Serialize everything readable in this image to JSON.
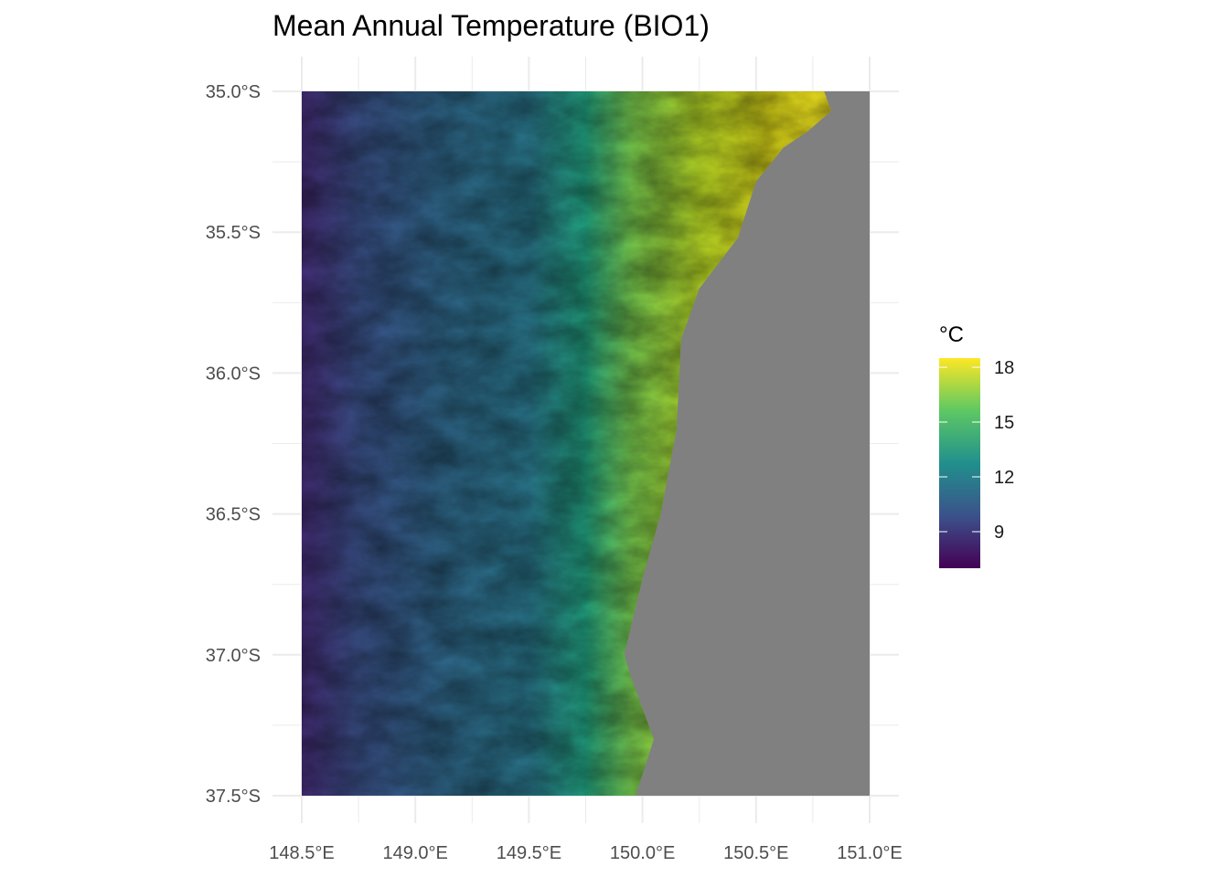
{
  "chart_data": {
    "type": "heatmap",
    "title": "Mean Annual Temperature (BIO1)",
    "xlabel": "",
    "ylabel": "",
    "x_ticks": [
      {
        "value": 148.5,
        "label": "148.5°E"
      },
      {
        "value": 149.0,
        "label": "149.0°E"
      },
      {
        "value": 149.5,
        "label": "149.5°E"
      },
      {
        "value": 150.0,
        "label": "150.0°E"
      },
      {
        "value": 150.5,
        "label": "150.5°E"
      },
      {
        "value": 151.0,
        "label": "151.0°E"
      }
    ],
    "y_ticks": [
      {
        "value": -35.0,
        "label": "35.0°S"
      },
      {
        "value": -35.5,
        "label": "35.5°S"
      },
      {
        "value": -36.0,
        "label": "36.0°S"
      },
      {
        "value": -36.5,
        "label": "36.5°S"
      },
      {
        "value": -37.0,
        "label": "37.0°S"
      },
      {
        "value": -37.5,
        "label": "37.5°S"
      }
    ],
    "xlim": [
      148.5,
      151.0
    ],
    "ylim": [
      -37.5,
      -35.0
    ],
    "grid": true,
    "legend": {
      "title": "°C",
      "placement": "right",
      "palette": "viridis",
      "colors": [
        "#440154",
        "#3b528b",
        "#21908c",
        "#5dc863",
        "#fde725"
      ],
      "range": [
        7,
        18.5
      ],
      "ticks": [
        {
          "value": 9,
          "label": "9"
        },
        {
          "value": 12,
          "label": "12"
        },
        {
          "value": 15,
          "label": "15"
        },
        {
          "value": 18,
          "label": "18"
        }
      ]
    },
    "na_color": "#808080",
    "coastline": [
      [
        150.8,
        -35.0
      ],
      [
        150.83,
        -35.07
      ],
      [
        150.73,
        -35.14
      ],
      [
        150.62,
        -35.2
      ],
      [
        150.5,
        -35.32
      ],
      [
        150.42,
        -35.52
      ],
      [
        150.25,
        -35.7
      ],
      [
        150.17,
        -35.88
      ],
      [
        150.15,
        -36.2
      ],
      [
        150.08,
        -36.5
      ],
      [
        150.0,
        -36.73
      ],
      [
        149.92,
        -37.0
      ],
      [
        149.95,
        -37.08
      ],
      [
        150.05,
        -37.3
      ],
      [
        149.97,
        -37.5
      ]
    ]
  }
}
